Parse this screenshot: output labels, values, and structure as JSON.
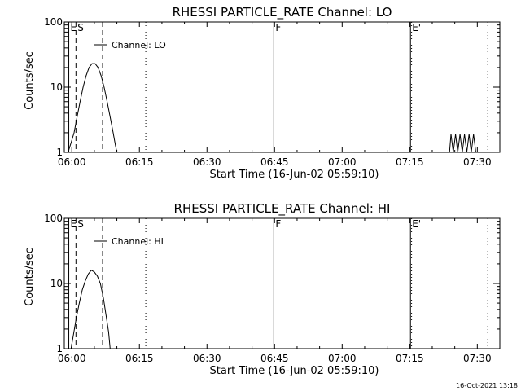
{
  "footer": {
    "timestamp": "16-Oct-2021 13:18"
  },
  "chart_data": [
    {
      "type": "line",
      "title": "RHESSI PARTICLE_RATE Channel: LO",
      "xlabel": "Start Time (16-Jun-02 05:59:10)",
      "ylabel": "Counts/sec",
      "y_scale": "log",
      "ylim": [
        1,
        100
      ],
      "xlim_seconds": [
        -50,
        5750
      ],
      "x_ticks": [
        {
          "value": 50,
          "label": "06:00"
        },
        {
          "value": 950,
          "label": "06:15"
        },
        {
          "value": 1850,
          "label": "06:30"
        },
        {
          "value": 2750,
          "label": "06:45"
        },
        {
          "value": 3650,
          "label": "07:00"
        },
        {
          "value": 4550,
          "label": "07:15"
        },
        {
          "value": 5450,
          "label": "07:30"
        }
      ],
      "y_ticks": [
        {
          "value": 1,
          "label": "1"
        },
        {
          "value": 10,
          "label": "10"
        },
        {
          "value": 100,
          "label": "100"
        }
      ],
      "legend": {
        "position": "top-left",
        "entries": [
          "Channel: LO"
        ]
      },
      "markers": [
        {
          "label": "E",
          "x": 10,
          "style": "solid"
        },
        {
          "label": "S",
          "x": 105,
          "style": "dashed"
        },
        {
          "label": "",
          "x": 460,
          "style": "dashed"
        },
        {
          "label": "",
          "x": 1035,
          "style": "dotted"
        },
        {
          "label": "F",
          "x": 2740,
          "style": "solid"
        },
        {
          "label": "E'",
          "x": 4560,
          "style": "solid"
        },
        {
          "label": "",
          "x": 4575,
          "style": "dotted"
        },
        {
          "label": "",
          "x": 5590,
          "style": "dotted"
        }
      ],
      "series": [
        {
          "name": "Channel: LO",
          "segments": [
            [
              {
                "x": 0,
                "y": 1.0
              },
              {
                "x": 40,
                "y": 1.4
              },
              {
                "x": 80,
                "y": 2.0
              },
              {
                "x": 120,
                "y": 3.5
              },
              {
                "x": 160,
                "y": 6.0
              },
              {
                "x": 200,
                "y": 10.0
              },
              {
                "x": 240,
                "y": 15.0
              },
              {
                "x": 280,
                "y": 20.0
              },
              {
                "x": 320,
                "y": 23.0
              },
              {
                "x": 360,
                "y": 23.0
              },
              {
                "x": 400,
                "y": 20.0
              },
              {
                "x": 440,
                "y": 15.0
              },
              {
                "x": 480,
                "y": 10.0
              },
              {
                "x": 520,
                "y": 6.0
              },
              {
                "x": 560,
                "y": 3.5
              },
              {
                "x": 600,
                "y": 2.0
              },
              {
                "x": 630,
                "y": 1.3
              },
              {
                "x": 650,
                "y": 1.0
              }
            ],
            [
              {
                "x": 5080,
                "y": 1.0
              },
              {
                "x": 5100,
                "y": 1.9
              },
              {
                "x": 5130,
                "y": 1.0
              },
              {
                "x": 5160,
                "y": 1.9
              },
              {
                "x": 5190,
                "y": 1.0
              },
              {
                "x": 5220,
                "y": 1.9
              },
              {
                "x": 5250,
                "y": 1.0
              },
              {
                "x": 5280,
                "y": 1.9
              },
              {
                "x": 5310,
                "y": 1.0
              },
              {
                "x": 5340,
                "y": 1.9
              },
              {
                "x": 5370,
                "y": 1.0
              },
              {
                "x": 5400,
                "y": 1.9
              },
              {
                "x": 5430,
                "y": 1.0
              }
            ]
          ]
        }
      ]
    },
    {
      "type": "line",
      "title": "RHESSI PARTICLE_RATE Channel: HI",
      "xlabel": "Start Time (16-Jun-02 05:59:10)",
      "ylabel": "Counts/sec",
      "y_scale": "log",
      "ylim": [
        1,
        100
      ],
      "xlim_seconds": [
        -50,
        5750
      ],
      "x_ticks": [
        {
          "value": 50,
          "label": "06:00"
        },
        {
          "value": 950,
          "label": "06:15"
        },
        {
          "value": 1850,
          "label": "06:30"
        },
        {
          "value": 2750,
          "label": "06:45"
        },
        {
          "value": 3650,
          "label": "07:00"
        },
        {
          "value": 4550,
          "label": "07:15"
        },
        {
          "value": 5450,
          "label": "07:30"
        }
      ],
      "y_ticks": [
        {
          "value": 1,
          "label": "1"
        },
        {
          "value": 10,
          "label": "10"
        },
        {
          "value": 100,
          "label": "100"
        }
      ],
      "legend": {
        "position": "top-left",
        "entries": [
          "Channel: HI"
        ]
      },
      "markers": [
        {
          "label": "E",
          "x": 10,
          "style": "solid"
        },
        {
          "label": "S",
          "x": 105,
          "style": "dashed"
        },
        {
          "label": "",
          "x": 460,
          "style": "dashed"
        },
        {
          "label": "",
          "x": 1035,
          "style": "dotted"
        },
        {
          "label": "F",
          "x": 2740,
          "style": "solid"
        },
        {
          "label": "E'",
          "x": 4560,
          "style": "solid"
        },
        {
          "label": "",
          "x": 4575,
          "style": "dotted"
        },
        {
          "label": "",
          "x": 5590,
          "style": "dotted"
        }
      ],
      "series": [
        {
          "name": "Channel: HI",
          "segments": [
            [
              {
                "x": 40,
                "y": 1.0
              },
              {
                "x": 70,
                "y": 1.6
              },
              {
                "x": 110,
                "y": 3.0
              },
              {
                "x": 150,
                "y": 5.0
              },
              {
                "x": 190,
                "y": 8.0
              },
              {
                "x": 230,
                "y": 11.0
              },
              {
                "x": 270,
                "y": 14.0
              },
              {
                "x": 310,
                "y": 16.0
              },
              {
                "x": 350,
                "y": 15.0
              },
              {
                "x": 390,
                "y": 13.0
              },
              {
                "x": 430,
                "y": 10.0
              },
              {
                "x": 470,
                "y": 6.0
              },
              {
                "x": 510,
                "y": 3.0
              },
              {
                "x": 540,
                "y": 1.8
              },
              {
                "x": 560,
                "y": 1.0
              }
            ]
          ]
        }
      ]
    }
  ]
}
